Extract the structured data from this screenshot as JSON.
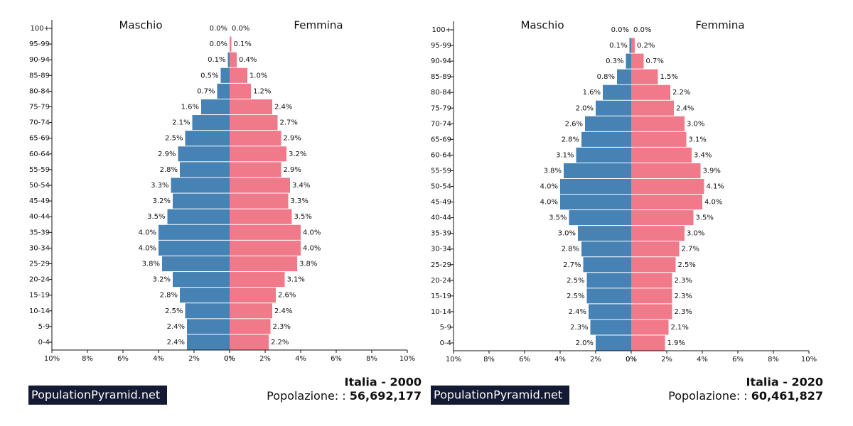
{
  "brand": "PopulationPyramid.net",
  "chart_data": [
    {
      "type": "pyramid",
      "title": "Italia - 2000",
      "population_prefix": "Popolazione: : ",
      "population": {
        "value": 56692177,
        "label": "56,692,177"
      },
      "categories": [
        "100+",
        "95-99",
        "90-94",
        "85-89",
        "80-84",
        "75-79",
        "70-74",
        "65-69",
        "60-64",
        "55-59",
        "50-54",
        "45-49",
        "40-44",
        "35-39",
        "30-34",
        "25-29",
        "20-24",
        "15-19",
        "10-14",
        "5-9",
        "0-4"
      ],
      "xlim": [
        0,
        10
      ],
      "xticks": [
        {
          "value": 0,
          "label": "0%"
        },
        {
          "value": 2,
          "label": "2%"
        },
        {
          "value": 4,
          "label": "4%"
        },
        {
          "value": 6,
          "label": "6%"
        },
        {
          "value": 8,
          "label": "8%"
        },
        {
          "value": 10,
          "label": "10%"
        }
      ],
      "series": [
        {
          "name": "Maschio",
          "color": "#4682b4",
          "values": [
            0.0,
            0.0,
            0.1,
            0.5,
            0.7,
            1.6,
            2.1,
            2.5,
            2.9,
            2.8,
            3.3,
            3.2,
            3.5,
            4.0,
            4.0,
            3.8,
            3.2,
            2.8,
            2.5,
            2.4,
            2.4
          ],
          "value_labels": [
            "0.0%",
            "0.0%",
            "0.1%",
            "0.5%",
            "0.7%",
            "1.6%",
            "2.1%",
            "2.5%",
            "2.9%",
            "2.8%",
            "3.3%",
            "3.2%",
            "3.5%",
            "4.0%",
            "4.0%",
            "3.8%",
            "3.2%",
            "2.8%",
            "2.5%",
            "2.4%",
            "2.4%"
          ]
        },
        {
          "name": "Femmina",
          "color": "#f07a89",
          "values": [
            0.0,
            0.1,
            0.4,
            1.0,
            1.2,
            2.4,
            2.7,
            2.9,
            3.2,
            2.9,
            3.4,
            3.3,
            3.5,
            4.0,
            4.0,
            3.8,
            3.1,
            2.6,
            2.4,
            2.3,
            2.2
          ],
          "value_labels": [
            "0.0%",
            "0.1%",
            "0.4%",
            "1.0%",
            "1.2%",
            "2.4%",
            "2.7%",
            "2.9%",
            "3.2%",
            "2.9%",
            "3.4%",
            "3.3%",
            "3.5%",
            "4.0%",
            "4.0%",
            "3.8%",
            "3.1%",
            "2.6%",
            "2.4%",
            "2.3%",
            "2.2%"
          ]
        }
      ]
    },
    {
      "type": "pyramid",
      "title": "Italia - 2020",
      "population_prefix": "Popolazione: : ",
      "population": {
        "value": 60461827,
        "label": "60,461,827"
      },
      "categories": [
        "100+",
        "95-99",
        "90-94",
        "85-89",
        "80-84",
        "75-79",
        "70-74",
        "65-69",
        "60-64",
        "55-59",
        "50-54",
        "45-49",
        "40-44",
        "35-39",
        "30-34",
        "25-29",
        "20-24",
        "15-19",
        "10-14",
        "5-9",
        "0-4"
      ],
      "xlim": [
        0,
        10
      ],
      "xticks": [
        {
          "value": 0,
          "label": "0%"
        },
        {
          "value": 2,
          "label": "2%"
        },
        {
          "value": 4,
          "label": "4%"
        },
        {
          "value": 6,
          "label": "6%"
        },
        {
          "value": 8,
          "label": "8%"
        },
        {
          "value": 10,
          "label": "10%"
        }
      ],
      "series": [
        {
          "name": "Maschio",
          "color": "#4682b4",
          "values": [
            0.0,
            0.1,
            0.3,
            0.8,
            1.6,
            2.0,
            2.6,
            2.8,
            3.1,
            3.8,
            4.0,
            4.0,
            3.5,
            3.0,
            2.8,
            2.7,
            2.5,
            2.5,
            2.4,
            2.3,
            2.0
          ],
          "value_labels": [
            "0.0%",
            "0.1%",
            "0.3%",
            "0.8%",
            "1.6%",
            "2.0%",
            "2.6%",
            "2.8%",
            "3.1%",
            "3.8%",
            "4.0%",
            "4.0%",
            "3.5%",
            "3.0%",
            "2.8%",
            "2.7%",
            "2.5%",
            "2.5%",
            "2.4%",
            "2.3%",
            "2.0%"
          ]
        },
        {
          "name": "Femmina",
          "color": "#f07a89",
          "values": [
            0.0,
            0.2,
            0.7,
            1.5,
            2.2,
            2.4,
            3.0,
            3.1,
            3.4,
            3.9,
            4.1,
            4.0,
            3.5,
            3.0,
            2.7,
            2.5,
            2.3,
            2.3,
            2.3,
            2.1,
            1.9
          ],
          "value_labels": [
            "0.0%",
            "0.2%",
            "0.7%",
            "1.5%",
            "2.2%",
            "2.4%",
            "3.0%",
            "3.1%",
            "3.4%",
            "3.9%",
            "4.1%",
            "4.0%",
            "3.5%",
            "3.0%",
            "2.7%",
            "2.5%",
            "2.3%",
            "2.3%",
            "2.3%",
            "2.1%",
            "1.9%"
          ]
        }
      ]
    }
  ]
}
